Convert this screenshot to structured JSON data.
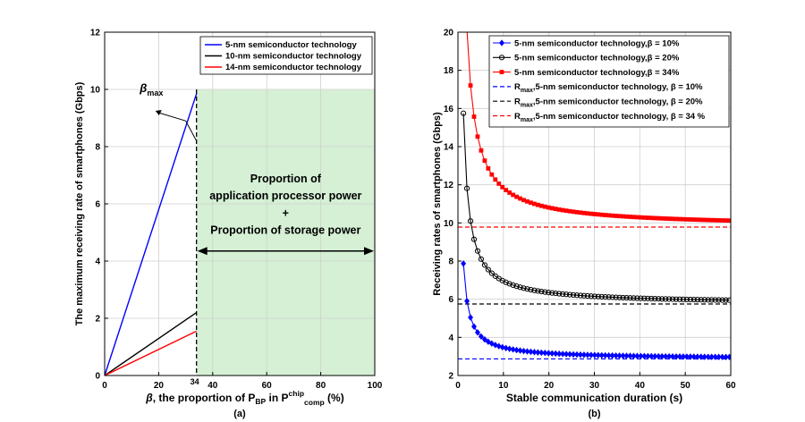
{
  "chart_data": [
    {
      "type": "line",
      "panel_label": "(a)",
      "xlabel_parts": {
        "beta": "β",
        "text1": ", the proportion of P",
        "sub1": "BP",
        "text2": " in P",
        "sup2": "chip",
        "sub2": "comp",
        "text3": " (%)"
      },
      "ylabel": "The maximum receiving rate of smartphones (Gbps)",
      "xlim": [
        0,
        100
      ],
      "ylim": [
        0,
        12
      ],
      "xticks": [
        "0",
        "20",
        "40",
        "60",
        "80",
        "100"
      ],
      "yticks": [
        "0",
        "2",
        "4",
        "6",
        "8",
        "10",
        "12"
      ],
      "extra_xtick": "34",
      "grid": true,
      "legend_position": "top-right",
      "series": [
        {
          "name": "5-nm semiconductor technology",
          "color": "#0000ff",
          "x": [
            0,
            34
          ],
          "y": [
            0,
            9.85
          ]
        },
        {
          "name": "10-nm semiconductor technology",
          "color": "#000000",
          "x": [
            0,
            34
          ],
          "y": [
            0,
            2.2
          ]
        },
        {
          "name": "14-nm semiconductor technology",
          "color": "#ff0000",
          "x": [
            0,
            34
          ],
          "y": [
            0,
            1.55
          ]
        }
      ],
      "shaded_region": {
        "x": [
          34,
          100
        ],
        "y": [
          0,
          10
        ],
        "color": "#d5f0d5"
      },
      "beta_max": {
        "label_main": "β",
        "label_sub": "max"
      },
      "annotation_lines": [
        "Proportion of",
        "application processor power",
        "+",
        "Proportion of storage power"
      ]
    },
    {
      "type": "line",
      "panel_label": "(b)",
      "xlabel": "Stable communication duration (s)",
      "ylabel": "Receiving rates of smartphones (Gbps)",
      "xlim": [
        0,
        60
      ],
      "ylim": [
        2,
        20
      ],
      "xticks": [
        "0",
        "10",
        "20",
        "30",
        "40",
        "50",
        "60"
      ],
      "yticks": [
        "2",
        "4",
        "6",
        "8",
        "10",
        "12",
        "14",
        "16",
        "18",
        "20"
      ],
      "grid": true,
      "legend_position": "top-right",
      "series": [
        {
          "name": "5-nm semiconductor technology,β = 10%",
          "color": "#0000ff",
          "marker": "diamond",
          "model": {
            "asymptote": 2.87,
            "coeff": 6.0,
            "start": 1.2
          }
        },
        {
          "name": "5-nm semiconductor technology,β = 20%",
          "color": "#000000",
          "marker": "circle",
          "model": {
            "asymptote": 5.75,
            "coeff": 12.0,
            "start": 1.2
          }
        },
        {
          "name": "5-nm semiconductor technology,β = 34%",
          "color": "#ff0000",
          "marker": "square",
          "model": {
            "asymptote": 9.78,
            "coeff": 20.5,
            "start": 1.2
          }
        }
      ],
      "reference_lines": [
        {
          "name_main": "R",
          "name_sub": "max",
          "name_rest": ",5-nm semiconductor technology, β = 10%",
          "color": "#0000ff",
          "y": 2.87
        },
        {
          "name_main": "R",
          "name_sub": "max",
          "name_rest": ",5-nm semiconductor technology, β = 20%",
          "color": "#000000",
          "y": 5.75
        },
        {
          "name_main": "R",
          "name_sub": "max",
          "name_rest": ",5-nm semiconductor technology, β = 34 %",
          "color": "#ff0000",
          "y": 9.78
        }
      ]
    }
  ]
}
